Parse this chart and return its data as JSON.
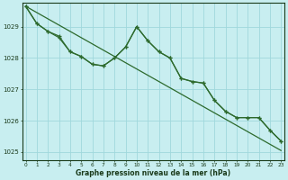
{
  "title": "Graphe pression niveau de la mer (hPa)",
  "background_color": "#c8eef0",
  "grid_color": "#a0d8dc",
  "line_color": "#2d6a2d",
  "x": [
    0,
    1,
    2,
    3,
    4,
    5,
    6,
    7,
    8,
    9,
    10,
    11,
    12,
    13,
    14,
    15,
    16,
    17,
    18,
    19,
    20,
    21,
    22,
    23
  ],
  "line1": [
    1029.65,
    1029.1,
    1028.85,
    1028.7,
    1028.2,
    1028.05,
    1027.8,
    1027.75,
    1028.0,
    1028.35,
    1029.0,
    1028.55,
    1028.2,
    1028.0,
    1027.35,
    1027.25,
    1027.2,
    1026.65,
    1026.3,
    1026.1,
    1026.1,
    1026.1,
    1025.7,
    1025.35
  ],
  "line2": [
    1029.65,
    1029.1,
    1028.85,
    1028.65,
    1028.2,
    1028.05,
    1027.8,
    1027.75,
    1028.0,
    1028.35,
    1029.0,
    1028.55,
    1028.2,
    1028.0,
    1027.35,
    1027.25,
    1027.2,
    1026.65,
    1026.3,
    1026.1,
    1026.1,
    1026.1,
    1025.7,
    1025.35
  ],
  "line_straight": [
    1029.65,
    1029.45,
    1029.25,
    1029.05,
    1028.85,
    1028.65,
    1028.45,
    1028.25,
    1028.05,
    1027.85,
    1027.65,
    1027.45,
    1027.25,
    1027.05,
    1026.85,
    1026.65,
    1026.45,
    1026.25,
    1026.05,
    1025.85,
    1025.65,
    1025.45,
    1025.25,
    1025.05
  ],
  "ylim": [
    1024.75,
    1029.75
  ],
  "yticks": [
    1025,
    1026,
    1027,
    1028,
    1029
  ],
  "xticks": [
    0,
    1,
    2,
    3,
    4,
    5,
    6,
    7,
    8,
    9,
    10,
    11,
    12,
    13,
    14,
    15,
    16,
    17,
    18,
    19,
    20,
    21,
    22,
    23
  ],
  "xlim": [
    -0.3,
    23.3
  ]
}
